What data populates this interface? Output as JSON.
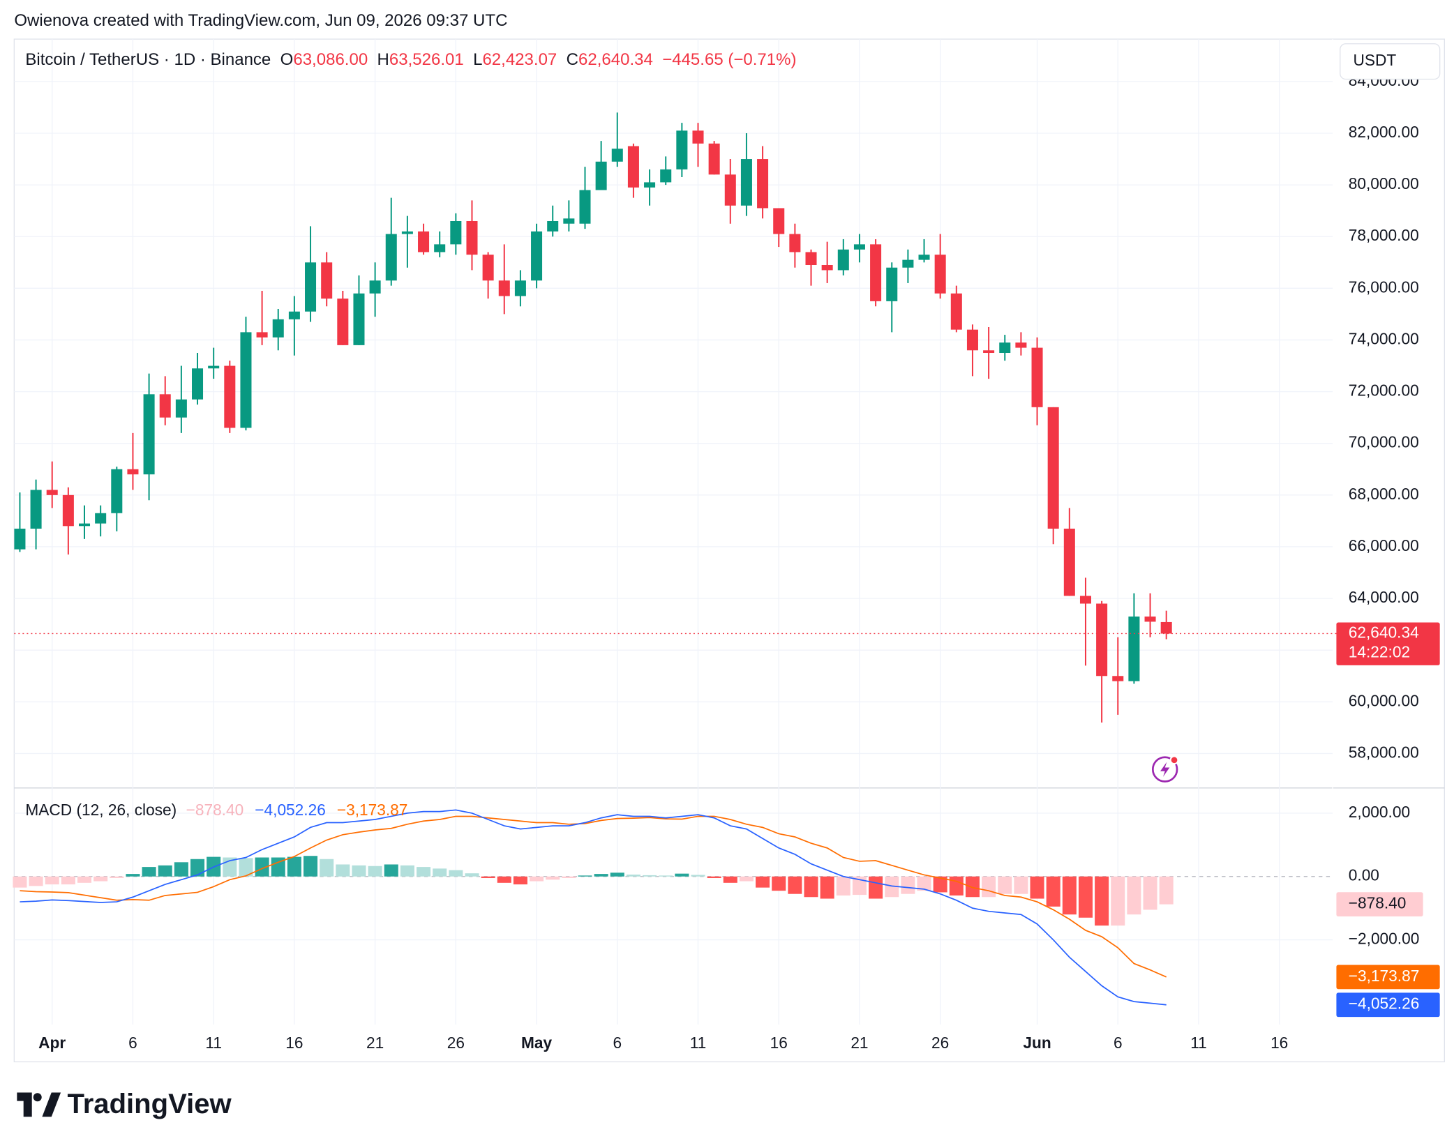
{
  "watermark": "Owienova created with TradingView.com, Jun 09, 2026 09:37 UTC",
  "brand": "TradingView",
  "currency": "USDT",
  "chart_data": [
    {
      "type": "candlestick",
      "title": "Bitcoin / TetherUS · 1D · Binance",
      "ohlc_labels": [
        {
          "key": "O",
          "label": "63,086.00"
        },
        {
          "key": "H",
          "label": "63,526.01"
        },
        {
          "key": "L",
          "label": "62,423.07"
        },
        {
          "key": "C",
          "label": "62,640.34"
        }
      ],
      "change_label": "−445.65 (−0.71%)",
      "countdown": "14:22:02",
      "x": [
        0,
        1,
        2,
        3,
        4,
        5,
        6,
        7,
        8,
        9,
        10,
        11,
        12,
        13,
        14,
        15,
        16,
        17,
        18,
        19,
        20,
        21,
        22,
        23,
        24,
        25,
        26,
        27,
        28,
        29,
        30,
        31,
        32,
        33,
        34,
        35,
        36,
        37,
        38,
        39,
        40,
        41,
        42,
        43,
        44,
        45,
        46,
        47,
        48,
        49,
        50,
        51,
        52,
        53,
        54,
        55,
        56,
        57,
        58,
        59,
        60,
        61,
        62,
        63,
        64,
        65,
        66,
        67,
        68,
        69,
        70,
        71
      ],
      "open": [
        65900,
        66700,
        68200,
        68000,
        66800,
        66900,
        67300,
        69000,
        68800,
        71900,
        71000,
        71700,
        72900,
        73000,
        70600,
        74300,
        74100,
        74800,
        75100,
        77000,
        75600,
        73800,
        75800,
        76300,
        78100,
        78200,
        77400,
        77700,
        78600,
        77300,
        76300,
        75700,
        76300,
        78200,
        78500,
        78500,
        79800,
        80900,
        81500,
        79900,
        80100,
        80600,
        82100,
        81600,
        80400,
        79200,
        81000,
        79100,
        78100,
        77400,
        76900,
        76700,
        77500,
        77700,
        75500,
        76800,
        77100,
        77300,
        75800,
        74400,
        73600,
        73500,
        73900,
        73700,
        71400,
        66700,
        64100,
        63800,
        61000,
        60800,
        63300,
        63086
      ],
      "high": [
        68100,
        68600,
        69300,
        68300,
        67600,
        67600,
        69100,
        70400,
        72700,
        72600,
        73000,
        73500,
        73700,
        73200,
        74900,
        75900,
        75200,
        75700,
        78400,
        77400,
        75900,
        76500,
        77000,
        79500,
        78800,
        78500,
        78200,
        78900,
        79400,
        77400,
        77700,
        76700,
        78500,
        79200,
        79400,
        80700,
        81700,
        82800,
        81600,
        80600,
        81100,
        82400,
        82400,
        81700,
        81000,
        82000,
        81500,
        79100,
        78500,
        77500,
        77800,
        77900,
        78100,
        77900,
        77000,
        77500,
        77900,
        78100,
        76100,
        74600,
        74500,
        74200,
        74300,
        74100,
        71400,
        67500,
        64800,
        63900,
        62500,
        64200,
        64200,
        63526.01
      ],
      "low": [
        65800,
        65900,
        67500,
        65700,
        66300,
        66400,
        66600,
        68200,
        67800,
        70700,
        70400,
        71500,
        72500,
        70400,
        70500,
        73800,
        73600,
        73400,
        74700,
        75300,
        73800,
        73800,
        74900,
        76100,
        76800,
        77300,
        77200,
        77300,
        76700,
        75600,
        75000,
        75300,
        76000,
        78000,
        78200,
        78300,
        79800,
        80700,
        79500,
        79200,
        80000,
        80300,
        80700,
        80400,
        78500,
        78800,
        78700,
        77600,
        76800,
        76100,
        76200,
        76500,
        77000,
        75300,
        74300,
        76200,
        77000,
        75600,
        74300,
        72600,
        72500,
        73200,
        73400,
        70700,
        66100,
        64100,
        61400,
        59200,
        59500,
        60700,
        62500,
        62423.07
      ],
      "close": [
        66700,
        68200,
        68000,
        66800,
        66900,
        67300,
        69000,
        68800,
        71900,
        71000,
        71700,
        72900,
        73000,
        70600,
        74300,
        74100,
        74800,
        75100,
        77000,
        75600,
        73800,
        75800,
        76300,
        78100,
        78200,
        77400,
        77700,
        78600,
        77300,
        76300,
        75700,
        76300,
        78200,
        78600,
        78700,
        79800,
        80900,
        81400,
        79900,
        80100,
        80600,
        82100,
        81600,
        80400,
        79200,
        81000,
        79100,
        78100,
        77400,
        76900,
        76700,
        77500,
        77700,
        75500,
        76800,
        77100,
        77300,
        75800,
        74400,
        73600,
        73500,
        73900,
        73700,
        71400,
        66700,
        64100,
        63800,
        61000,
        60800,
        63300,
        63100,
        62640.34
      ],
      "up_color": "#089981",
      "down_color": "#f23645",
      "xlim": [
        -0.35,
        81.3
      ],
      "ylim": [
        56703,
        85640
      ],
      "yticks": [
        {
          "value": 58000,
          "label": "58,000.00"
        },
        {
          "value": 60000,
          "label": "60,000.00"
        },
        {
          "value": 62000,
          "label": "62,000.00"
        },
        {
          "value": 64000,
          "label": "64,000.00"
        },
        {
          "value": 66000,
          "label": "66,000.00"
        },
        {
          "value": 68000,
          "label": "68,000.00"
        },
        {
          "value": 70000,
          "label": "70,000.00"
        },
        {
          "value": 72000,
          "label": "72,000.00"
        },
        {
          "value": 74000,
          "label": "74,000.00"
        },
        {
          "value": 76000,
          "label": "76,000.00"
        },
        {
          "value": 78000,
          "label": "78,000.00"
        },
        {
          "value": 80000,
          "label": "80,000.00"
        },
        {
          "value": 82000,
          "label": "82,000.00"
        },
        {
          "value": 84000,
          "label": "84,000.00"
        }
      ],
      "grid": true
    },
    {
      "type": "macd",
      "title": "MACD (12, 26, close)",
      "x": [
        0,
        1,
        2,
        3,
        4,
        5,
        6,
        7,
        8,
        9,
        10,
        11,
        12,
        13,
        14,
        15,
        16,
        17,
        18,
        19,
        20,
        21,
        22,
        23,
        24,
        25,
        26,
        27,
        28,
        29,
        30,
        31,
        32,
        33,
        34,
        35,
        36,
        37,
        38,
        39,
        40,
        41,
        42,
        43,
        44,
        45,
        46,
        47,
        48,
        49,
        50,
        51,
        52,
        53,
        54,
        55,
        56,
        57,
        58,
        59,
        60,
        61,
        62,
        63,
        64,
        65,
        66,
        67,
        68,
        69,
        70,
        71
      ],
      "histogram": {
        "values": [
          -350,
          -300,
          -250,
          -250,
          -200,
          -150,
          -50,
          80,
          300,
          350,
          450,
          550,
          620,
          600,
          580,
          600,
          600,
          620,
          650,
          550,
          380,
          350,
          330,
          380,
          350,
          300,
          250,
          200,
          100,
          -50,
          -200,
          -250,
          -150,
          -100,
          -50,
          30,
          80,
          120,
          60,
          40,
          30,
          90,
          50,
          -50,
          -200,
          -150,
          -350,
          -450,
          -550,
          -650,
          -700,
          -600,
          -580,
          -700,
          -650,
          -550,
          -450,
          -500,
          -600,
          -650,
          -650,
          -550,
          -550,
          -700,
          -950,
          -1200,
          -1300,
          -1550,
          -1550,
          -1200,
          -1050,
          -878.4
        ],
        "colors": {
          "up_rising": "#26a69a",
          "up_falling": "#b2dfdb",
          "down_falling": "#ff5252",
          "down_rising": "#ffcdd2"
        },
        "last_label": "−878.40"
      },
      "macd": {
        "color": "#2962ff",
        "last_label": "−4,052.26",
        "values": [
          -800,
          -780,
          -740,
          -760,
          -790,
          -820,
          -800,
          -650,
          -450,
          -250,
          -100,
          50,
          300,
          500,
          600,
          850,
          1050,
          1250,
          1550,
          1700,
          1700,
          1750,
          1800,
          1900,
          2000,
          2050,
          2050,
          2100,
          2000,
          1800,
          1600,
          1500,
          1550,
          1600,
          1600,
          1700,
          1850,
          1950,
          1900,
          1900,
          1850,
          1900,
          1950,
          1850,
          1600,
          1500,
          1200,
          900,
          700,
          400,
          200,
          0,
          -100,
          -200,
          -300,
          -350,
          -400,
          -550,
          -750,
          -1000,
          -1100,
          -1150,
          -1200,
          -1500,
          -2000,
          -2550,
          -3000,
          -3450,
          -3800,
          -3950,
          -4000,
          -4052.26
        ]
      },
      "signal": {
        "color": "#ff6d00",
        "last_label": "−3,173.87",
        "values": [
          -450,
          -480,
          -490,
          -510,
          -590,
          -670,
          -750,
          -730,
          -750,
          -600,
          -550,
          -500,
          -320,
          -100,
          20,
          250,
          450,
          630,
          900,
          1150,
          1320,
          1400,
          1470,
          1520,
          1650,
          1750,
          1800,
          1900,
          1900,
          1850,
          1800,
          1750,
          1700,
          1700,
          1650,
          1670,
          1770,
          1830,
          1840,
          1860,
          1820,
          1810,
          1900,
          1900,
          1800,
          1650,
          1550,
          1350,
          1250,
          1050,
          900,
          600,
          480,
          500,
          350,
          200,
          50,
          -50,
          -150,
          -350,
          -450,
          -600,
          -650,
          -800,
          -1050,
          -1350,
          -1700,
          -1900,
          -2250,
          -2750,
          -2950,
          -3173.87
        ]
      },
      "xlim": [
        -0.35,
        81.3
      ],
      "xticks": [
        {
          "value": 2,
          "label": "Apr"
        },
        {
          "value": 7,
          "label": "6"
        },
        {
          "value": 12,
          "label": "11"
        },
        {
          "value": 17,
          "label": "16"
        },
        {
          "value": 22,
          "label": "21"
        },
        {
          "value": 27,
          "label": "26"
        },
        {
          "value": 32,
          "label": "May"
        },
        {
          "value": 37,
          "label": "6"
        },
        {
          "value": 42,
          "label": "11"
        },
        {
          "value": 47,
          "label": "16"
        },
        {
          "value": 52,
          "label": "21"
        },
        {
          "value": 57,
          "label": "26"
        },
        {
          "value": 63,
          "label": "Jun"
        },
        {
          "value": 68,
          "label": "6"
        },
        {
          "value": 73,
          "label": "11"
        },
        {
          "value": 78,
          "label": "16"
        }
      ],
      "ylim": [
        -4676,
        2765
      ],
      "yticks": [
        {
          "value": 2000,
          "label": "2,000.00"
        },
        {
          "value": 0,
          "label": "0.00"
        },
        {
          "value": -2000,
          "label": "−2,000.00"
        }
      ],
      "grid": true
    }
  ]
}
